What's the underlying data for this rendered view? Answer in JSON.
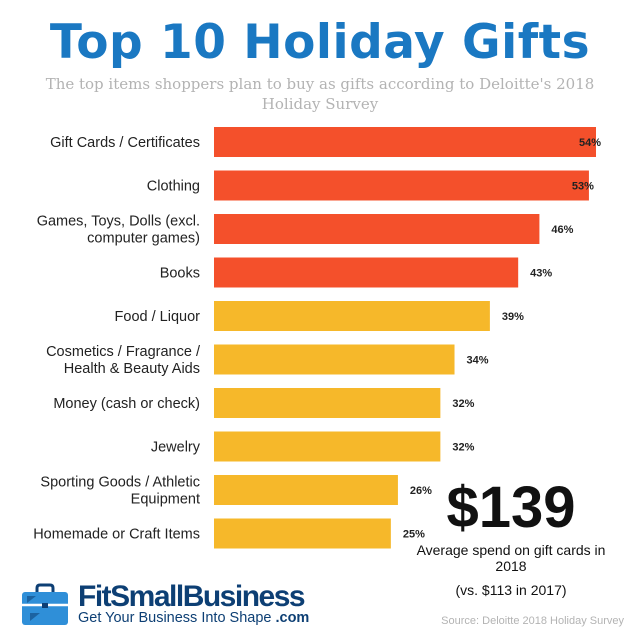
{
  "header": {
    "title": "Top 10 Holiday Gifts",
    "subtitle": "The top items shoppers plan to buy as gifts according to Deloitte's 2018 Holiday Survey"
  },
  "chart_data": {
    "type": "bar",
    "orientation": "horizontal",
    "title": "Top 10 Holiday Gifts",
    "subtitle": "The top items shoppers plan to buy as gifts according to Deloitte's 2018 Holiday Survey",
    "categories": [
      [
        "Gift Cards / Certificates"
      ],
      [
        "Clothing"
      ],
      [
        "Games, Toys, Dolls (excl.",
        "computer games)"
      ],
      [
        "Books"
      ],
      [
        "Food / Liquor"
      ],
      [
        "Cosmetics / Fragrance /",
        "Health & Beauty Aids"
      ],
      [
        "Money (cash or check)"
      ],
      [
        "Jewelry"
      ],
      [
        "Sporting Goods / Athletic",
        "Equipment"
      ],
      [
        "Homemade or Craft Items"
      ]
    ],
    "values": [
      54,
      53,
      46,
      43,
      39,
      34,
      32,
      32,
      26,
      25
    ],
    "value_labels": [
      "54%",
      "53%",
      "46%",
      "43%",
      "39%",
      "34%",
      "32%",
      "32%",
      "26%",
      "25%"
    ],
    "colors": [
      "#f4502b",
      "#f4502b",
      "#f4502b",
      "#f4502b",
      "#f6b82a",
      "#f6b82a",
      "#f6b82a",
      "#f6b82a",
      "#f6b82a",
      "#f6b82a"
    ],
    "xlim": [
      0,
      54
    ],
    "grid": false,
    "legend": "none"
  },
  "callout": {
    "amount": "$139",
    "text": "Average spend on gift cards in 2018",
    "compare": "(vs. $113 in 2017)"
  },
  "branding": {
    "name": "FitSmallBusiness",
    "tagline": "Get Your Business Into Shape",
    "tld": ".com",
    "icon": "briefcase-icon",
    "color": "#0d3f74"
  },
  "footer": {
    "source": "Source: Deloitte 2018 Holiday Survey"
  },
  "colors": {
    "title": "#1a78c2",
    "subtitle": "#b3b3b3",
    "top_bars": "#f4502b",
    "other_bars": "#f6b82a"
  }
}
